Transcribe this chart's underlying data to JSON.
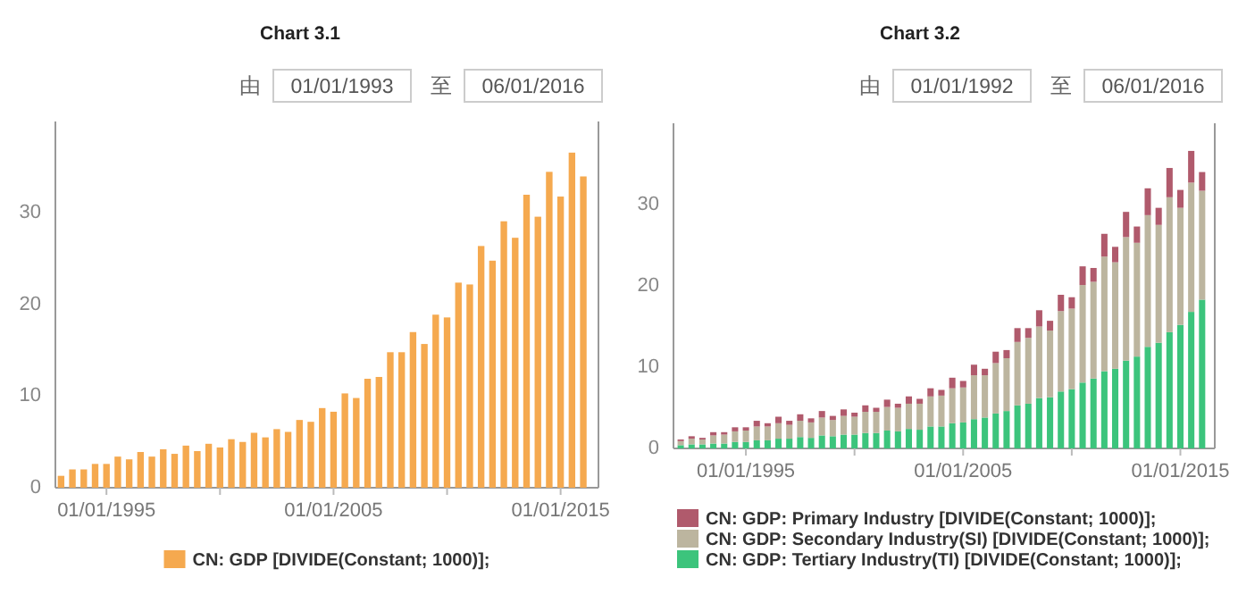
{
  "chart_data": [
    {
      "type": "bar",
      "title": "Chart 3.1",
      "annotations": [
        "由",
        "01/01/1993",
        "至",
        "06/01/2016"
      ],
      "x": [
        "1993-01",
        "1993-07",
        "1994-01",
        "1994-07",
        "1995-01",
        "1995-07",
        "1996-01",
        "1996-07",
        "1997-01",
        "1997-07",
        "1998-01",
        "1998-07",
        "1999-01",
        "1999-07",
        "2000-01",
        "2000-07",
        "2001-01",
        "2001-07",
        "2002-01",
        "2002-07",
        "2003-01",
        "2003-07",
        "2004-01",
        "2004-07",
        "2005-01",
        "2005-07",
        "2006-01",
        "2006-07",
        "2007-01",
        "2007-07",
        "2008-01",
        "2008-07",
        "2009-01",
        "2009-07",
        "2010-01",
        "2010-07",
        "2011-01",
        "2011-07",
        "2012-01",
        "2012-07",
        "2013-01",
        "2013-07",
        "2014-01",
        "2014-07",
        "2015-01",
        "2015-07",
        "2016-01"
      ],
      "series": [
        {
          "name": "CN: GDP [DIVIDE(Constant; 1000)];",
          "color": "#f5a94f",
          "values": [
            1.3,
            2.0,
            2.0,
            2.6,
            2.6,
            3.4,
            3.1,
            3.9,
            3.4,
            4.2,
            3.7,
            4.6,
            4.0,
            4.8,
            4.4,
            5.3,
            5.0,
            6.0,
            5.5,
            6.4,
            6.1,
            7.4,
            7.2,
            8.7,
            8.3,
            10.3,
            9.8,
            11.9,
            12.1,
            14.8,
            14.8,
            17.0,
            15.7,
            18.9,
            18.6,
            22.4,
            22.2,
            26.4,
            24.8,
            29.1,
            27.3,
            32.0,
            29.6,
            34.5,
            31.8,
            36.6,
            34.0
          ]
        }
      ],
      "xlim": [
        "1992-10",
        "2016-09"
      ],
      "xticks": [
        {
          "value": "1995-01-01",
          "label": "01/01/1995"
        },
        {
          "value": "2000-01-01",
          "label": null
        },
        {
          "value": "2005-01-01",
          "label": "01/01/2005"
        },
        {
          "value": "2010-01-01",
          "label": null
        },
        {
          "value": "2015-01-01",
          "label": "01/01/2015"
        }
      ],
      "ylim": [
        0,
        40
      ],
      "yticks": [
        0,
        10,
        20,
        30
      ],
      "legend": "bottom"
    },
    {
      "type": "bar",
      "title": "Chart 3.2",
      "annotations": [
        "由",
        "01/01/1992",
        "至",
        "06/01/2016"
      ],
      "stacked": true,
      "x": [
        "1992-01",
        "1992-07",
        "1993-01",
        "1993-07",
        "1994-01",
        "1994-07",
        "1995-01",
        "1995-07",
        "1996-01",
        "1996-07",
        "1997-01",
        "1997-07",
        "1998-01",
        "1998-07",
        "1999-01",
        "1999-07",
        "2000-01",
        "2000-07",
        "2001-01",
        "2001-07",
        "2002-01",
        "2002-07",
        "2003-01",
        "2003-07",
        "2004-01",
        "2004-07",
        "2005-01",
        "2005-07",
        "2006-01",
        "2006-07",
        "2007-01",
        "2007-07",
        "2008-01",
        "2008-07",
        "2009-01",
        "2009-07",
        "2010-01",
        "2010-07",
        "2011-01",
        "2011-07",
        "2012-01",
        "2012-07",
        "2013-01",
        "2013-07",
        "2014-01",
        "2014-07",
        "2015-01",
        "2015-07",
        "2016-01"
      ],
      "series": [
        {
          "name": "CN: GDP: Tertiary Industry(TI) [DIVIDE(Constant; 1000)];",
          "color": "#3cc47c",
          "values": [
            0.4,
            0.5,
            0.5,
            0.6,
            0.6,
            0.8,
            0.8,
            1.0,
            1.0,
            1.2,
            1.2,
            1.4,
            1.3,
            1.6,
            1.5,
            1.7,
            1.7,
            1.9,
            1.9,
            2.2,
            2.1,
            2.4,
            2.3,
            2.7,
            2.7,
            3.1,
            3.2,
            3.6,
            3.8,
            4.3,
            4.6,
            5.3,
            5.5,
            6.2,
            6.3,
            7.0,
            7.3,
            8.1,
            8.6,
            9.5,
            9.8,
            10.8,
            11.3,
            12.5,
            13.0,
            14.3,
            15.2,
            16.8,
            18.3
          ]
        },
        {
          "name": "CN: GDP: Secondary Industry(SI) [DIVIDE(Constant; 1000)];",
          "color": "#bcb59f",
          "values": [
            0.5,
            0.7,
            0.6,
            1.0,
            1.1,
            1.3,
            1.4,
            1.7,
            1.7,
            1.9,
            1.7,
            2.0,
            1.9,
            2.2,
            2.0,
            2.3,
            2.2,
            2.6,
            2.6,
            2.9,
            2.9,
            3.1,
            3.2,
            3.7,
            3.8,
            4.3,
            4.3,
            5.4,
            5.2,
            6.2,
            6.5,
            7.8,
            8.1,
            8.8,
            8.2,
            9.9,
            9.9,
            12.0,
            11.9,
            14.1,
            13.1,
            15.2,
            14.0,
            16.2,
            14.5,
            16.6,
            14.4,
            15.9,
            13.4
          ]
        },
        {
          "name": "CN: GDP: Primary Industry [DIVIDE(Constant; 1000)];",
          "color": "#b05a6c",
          "values": [
            0.2,
            0.3,
            0.2,
            0.4,
            0.3,
            0.5,
            0.4,
            0.7,
            0.4,
            0.8,
            0.5,
            0.8,
            0.5,
            0.8,
            0.5,
            0.8,
            0.5,
            0.8,
            0.5,
            0.9,
            0.5,
            0.9,
            0.6,
            1.0,
            0.7,
            1.3,
            0.8,
            1.3,
            0.8,
            1.4,
            1.0,
            1.7,
            1.2,
            2.0,
            1.2,
            2.0,
            1.4,
            2.3,
            1.7,
            2.8,
            1.9,
            3.1,
            2.0,
            3.3,
            2.1,
            3.6,
            2.2,
            3.9,
            2.3
          ]
        }
      ],
      "xlim": [
        "1991-09",
        "2016-08"
      ],
      "xticks": [
        {
          "value": "1995-01-01",
          "label": "01/01/1995"
        },
        {
          "value": "2000-01-01",
          "label": null
        },
        {
          "value": "2005-01-01",
          "label": "01/01/2005"
        },
        {
          "value": "2010-01-01",
          "label": null
        },
        {
          "value": "2015-01-01",
          "label": "01/01/2015"
        }
      ],
      "ylim": [
        0,
        40
      ],
      "yticks": [
        0,
        10,
        20,
        30
      ],
      "legend": "bottom"
    }
  ]
}
